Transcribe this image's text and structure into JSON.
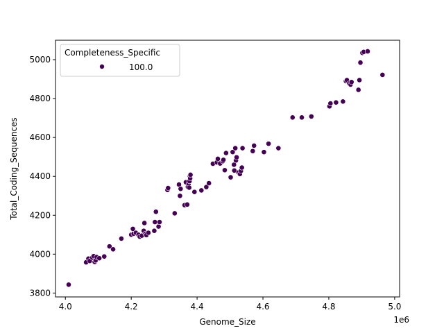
{
  "chart_data": {
    "type": "scatter",
    "xlabel": "Genome_Size",
    "ylabel": "Total_Coding_Sequences",
    "x_offset_label": "1e6",
    "xlim": [
      3.97,
      5.015
    ],
    "ylim": [
      3780,
      5100
    ],
    "x_ticks": [
      4.0,
      4.2,
      4.4,
      4.6,
      4.8,
      5.0
    ],
    "x_tick_labels": [
      "4.0",
      "4.2",
      "4.4",
      "4.6",
      "4.8",
      "5.0"
    ],
    "y_ticks": [
      3800,
      4000,
      4200,
      4400,
      4600,
      4800,
      5000
    ],
    "y_tick_labels": [
      "3800",
      "4000",
      "4200",
      "4400",
      "4600",
      "4800",
      "5000"
    ],
    "grid": false,
    "legend": {
      "title": "Completeness_Specific",
      "placement": "upper-left",
      "entries": [
        {
          "label": "100.0",
          "color": "#440154"
        }
      ]
    },
    "series": [
      {
        "name": "100.0",
        "color": "#440154",
        "points": [
          [
            4.01,
            3843
          ],
          [
            4.063,
            3958
          ],
          [
            4.07,
            3977
          ],
          [
            4.074,
            3965
          ],
          [
            4.082,
            3982
          ],
          [
            4.086,
            3990
          ],
          [
            4.089,
            3960
          ],
          [
            4.092,
            3968
          ],
          [
            4.095,
            3985
          ],
          [
            4.103,
            3979
          ],
          [
            4.118,
            3988
          ],
          [
            4.134,
            4040
          ],
          [
            4.145,
            4025
          ],
          [
            4.17,
            4080
          ],
          [
            4.2,
            4100
          ],
          [
            4.205,
            4130
          ],
          [
            4.207,
            4105
          ],
          [
            4.214,
            4110
          ],
          [
            4.222,
            4100
          ],
          [
            4.226,
            4090
          ],
          [
            4.232,
            4095
          ],
          [
            4.238,
            4120
          ],
          [
            4.24,
            4160
          ],
          [
            4.243,
            4105
          ],
          [
            4.246,
            4098
          ],
          [
            4.252,
            4110
          ],
          [
            4.27,
            4120
          ],
          [
            4.272,
            4165
          ],
          [
            4.275,
            4218
          ],
          [
            4.283,
            4142
          ],
          [
            4.286,
            4165
          ],
          [
            4.31,
            4330
          ],
          [
            4.312,
            4340
          ],
          [
            4.332,
            4210
          ],
          [
            4.345,
            4358
          ],
          [
            4.348,
            4300
          ],
          [
            4.35,
            4336
          ],
          [
            4.362,
            4252
          ],
          [
            4.366,
            4370
          ],
          [
            4.37,
            4255
          ],
          [
            4.372,
            4346
          ],
          [
            4.374,
            4360
          ],
          [
            4.376,
            4342
          ],
          [
            4.377,
            4375
          ],
          [
            4.378,
            4400
          ],
          [
            4.379,
            4390
          ],
          [
            4.38,
            4408
          ],
          [
            4.392,
            4320
          ],
          [
            4.413,
            4328
          ],
          [
            4.428,
            4345
          ],
          [
            4.436,
            4365
          ],
          [
            4.448,
            4465
          ],
          [
            4.46,
            4472
          ],
          [
            4.463,
            4490
          ],
          [
            4.47,
            4466
          ],
          [
            4.478,
            4478
          ],
          [
            4.48,
            4485
          ],
          [
            4.484,
            4432
          ],
          [
            4.488,
            4520
          ],
          [
            4.502,
            4395
          ],
          [
            4.508,
            4525
          ],
          [
            4.512,
            4460
          ],
          [
            4.513,
            4430
          ],
          [
            4.516,
            4545
          ],
          [
            4.518,
            4482
          ],
          [
            4.52,
            4498
          ],
          [
            4.526,
            4420
          ],
          [
            4.53,
            4412
          ],
          [
            4.533,
            4428
          ],
          [
            4.536,
            4445
          ],
          [
            4.538,
            4545
          ],
          [
            4.569,
            4530
          ],
          [
            4.573,
            4558
          ],
          [
            4.603,
            4525
          ],
          [
            4.617,
            4568
          ],
          [
            4.647,
            4545
          ],
          [
            4.69,
            4703
          ],
          [
            4.718,
            4703
          ],
          [
            4.747,
            4708
          ],
          [
            4.802,
            4760
          ],
          [
            4.805,
            4775
          ],
          [
            4.822,
            4780
          ],
          [
            4.843,
            4785
          ],
          [
            4.852,
            4890
          ],
          [
            4.855,
            4895
          ],
          [
            4.862,
            4878
          ],
          [
            4.866,
            4872
          ],
          [
            4.869,
            4885
          ],
          [
            4.89,
            4845
          ],
          [
            4.893,
            4895
          ],
          [
            4.896,
            4985
          ],
          [
            4.902,
            5035
          ],
          [
            4.906,
            5040
          ],
          [
            4.918,
            5043
          ],
          [
            4.963,
            4922
          ]
        ]
      }
    ]
  }
}
